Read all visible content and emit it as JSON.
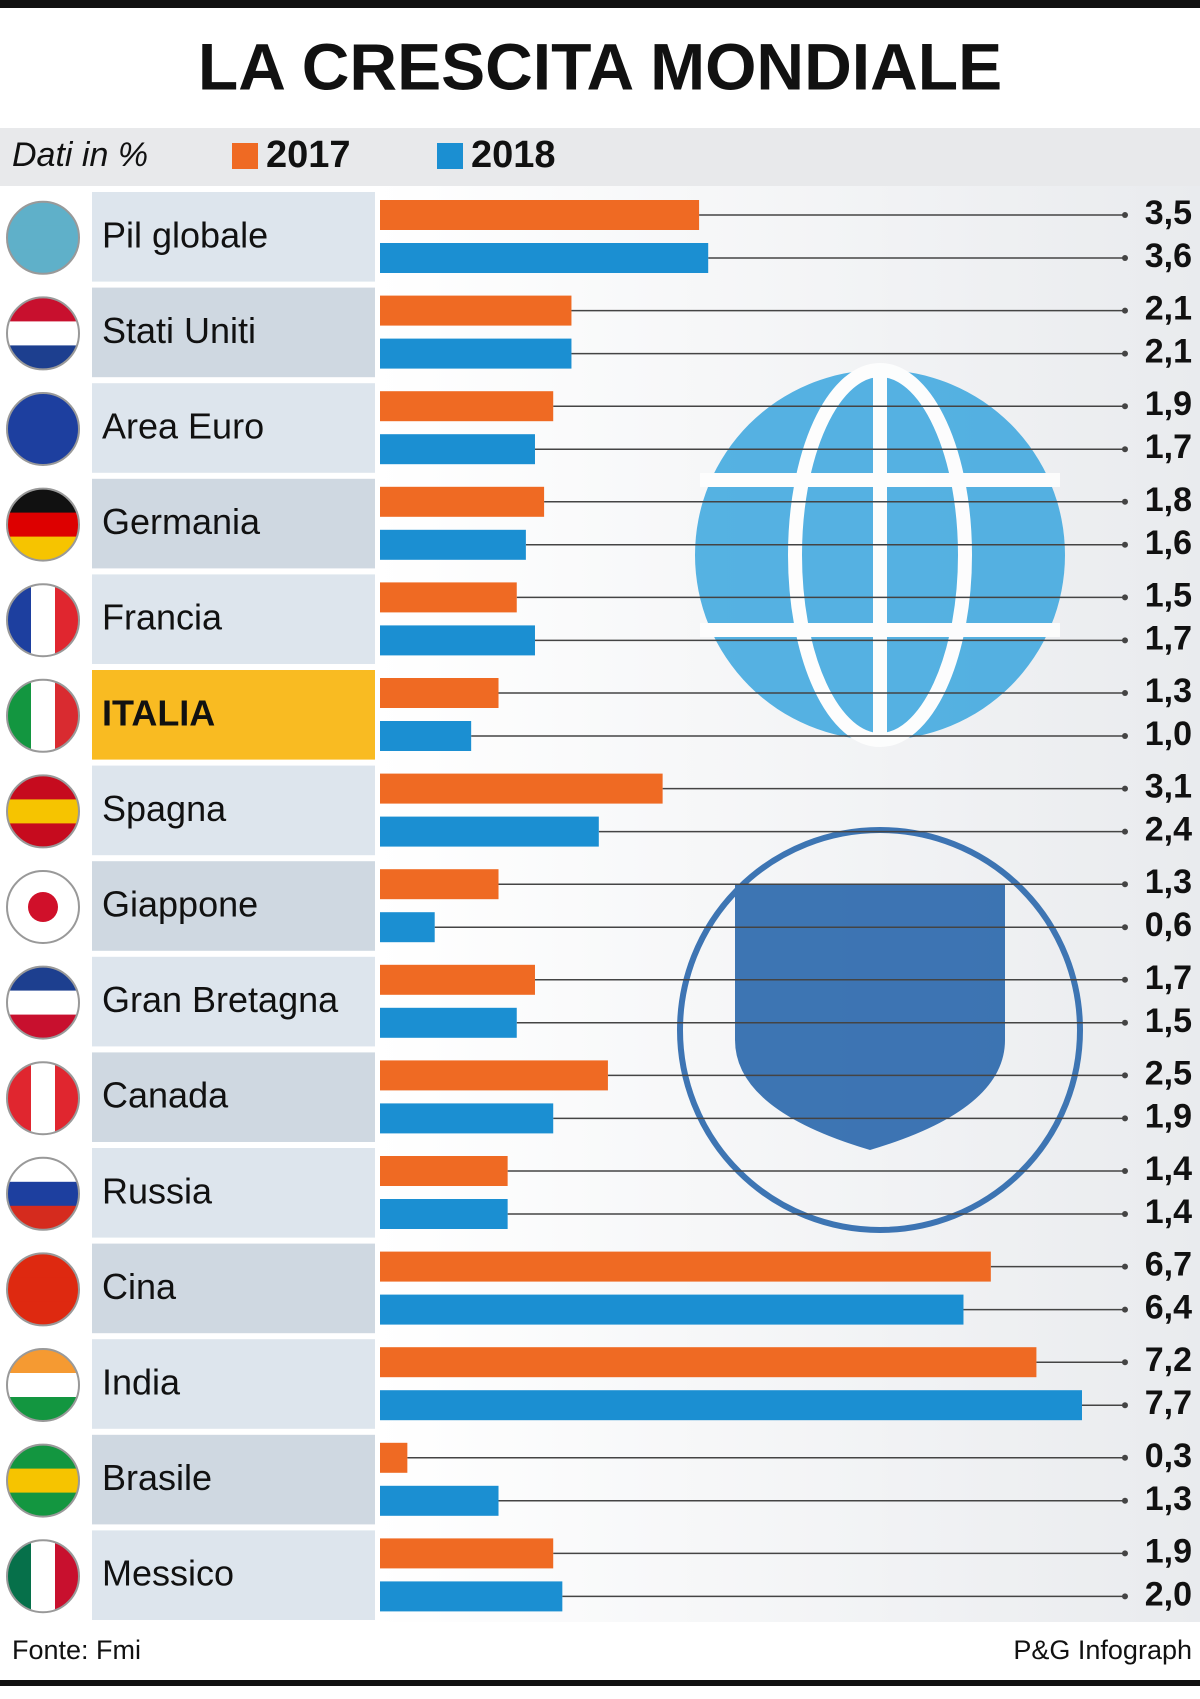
{
  "chart_data": {
    "type": "bar",
    "orientation": "horizontal",
    "title": "LA CRESCITA MONDIALE",
    "subtitle": "Dati in %",
    "categories": [
      "Pil globale",
      "Stati Uniti",
      "Area Euro",
      "Germania",
      "Francia",
      "ITALIA",
      "Spagna",
      "Giappone",
      "Gran Bretagna",
      "Canada",
      "Russia",
      "Cina",
      "India",
      "Brasile",
      "Messico"
    ],
    "highlight": 5,
    "highlight_color": "#f9bb22",
    "series": [
      {
        "name": "2017",
        "color": "#ef6a23",
        "values": [
          3.5,
          2.1,
          1.9,
          1.8,
          1.5,
          1.3,
          3.1,
          1.3,
          1.7,
          2.5,
          1.4,
          6.7,
          7.2,
          0.3,
          1.9
        ],
        "value_labels": [
          "3,5",
          "2,1",
          "1,9",
          "1,8",
          "1,5",
          "1,3",
          "3,1",
          "1,3",
          "1,7",
          "2,5",
          "1,4",
          "6,7",
          "7,2",
          "0,3",
          "1,9"
        ]
      },
      {
        "name": "2018",
        "color": "#1b8fd2",
        "values": [
          3.6,
          2.1,
          1.7,
          1.6,
          1.7,
          1.0,
          2.4,
          0.6,
          1.5,
          1.9,
          1.4,
          6.4,
          7.7,
          1.3,
          2.0
        ],
        "value_labels": [
          "3,6",
          "2,1",
          "1,7",
          "1,6",
          "1,7",
          "1,0",
          "2,4",
          "0,6",
          "1,5",
          "1,9",
          "1,4",
          "6,4",
          "7,7",
          "1,3",
          "2,0"
        ]
      }
    ],
    "source": "Fonte: Fmi",
    "credit": "P&G Infograph"
  }
}
